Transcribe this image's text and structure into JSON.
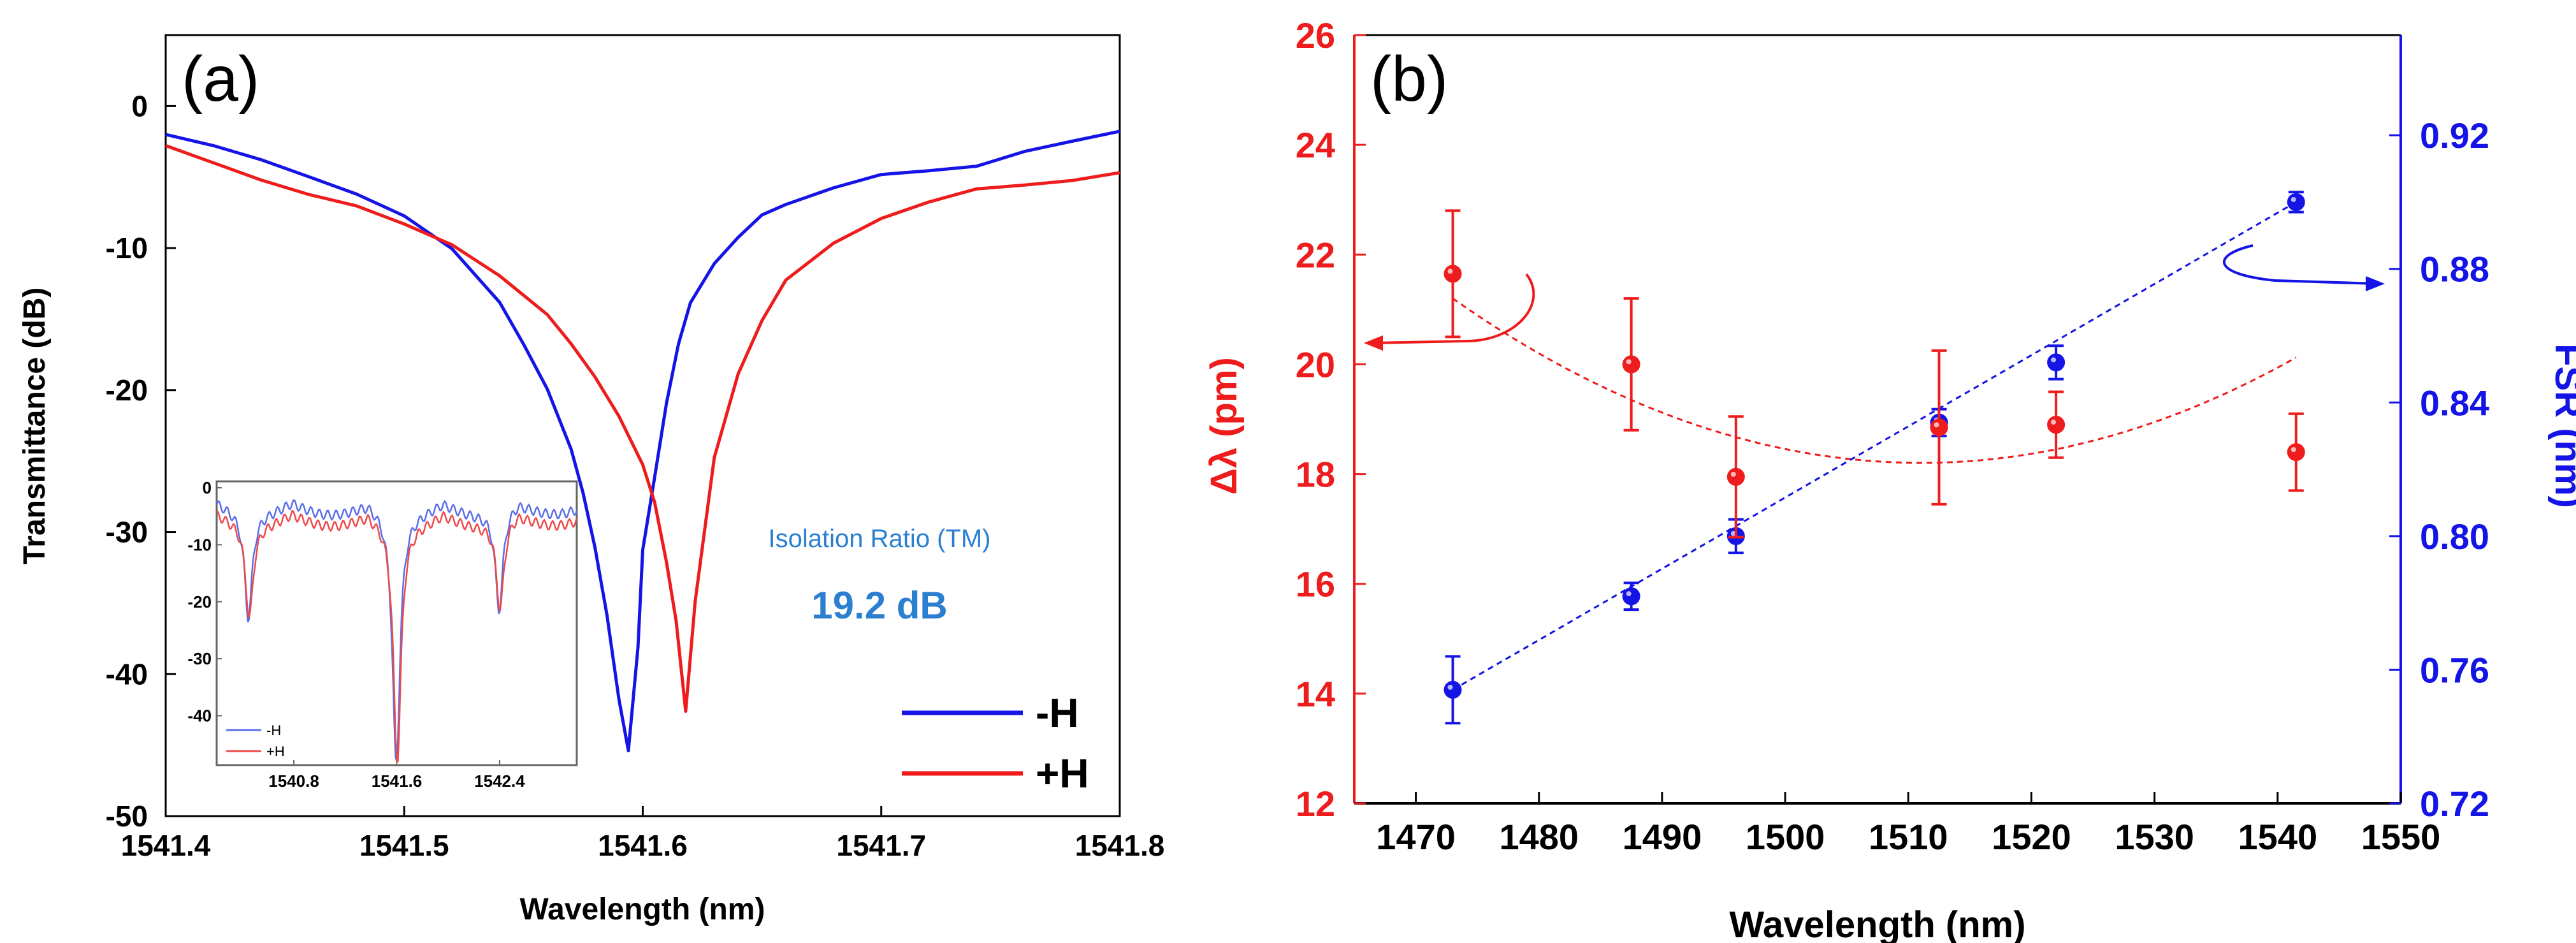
{
  "chart_data": [
    {
      "type": "line",
      "panel_label": "(a)",
      "xlabel": "Wavelength (nm)",
      "ylabel": "Transmittance (dB)",
      "xlim": [
        1541.4,
        1541.8
      ],
      "ylim": [
        -50,
        5
      ],
      "xticks": [
        1541.4,
        1541.5,
        1541.6,
        1541.7,
        1541.8
      ],
      "xtick_labels": [
        "1541.4",
        "1541.5",
        "1541.6",
        "1541.7",
        "1541.8"
      ],
      "yticks": [
        0,
        -10,
        -20,
        -30,
        -40,
        -50
      ],
      "ytick_labels": [
        "0",
        "-10",
        "-20",
        "-30",
        "-40",
        "-50"
      ],
      "annotation_title": "Isolation Ratio (TM)",
      "annotation_value": "19.2 dB",
      "colors": {
        "minus_h": "#1414e6",
        "plus_h": "#ee1c1c",
        "annotation": "#2b7fd0"
      },
      "series": [
        {
          "name": "-H",
          "x": [
            1541.4,
            1541.42,
            1541.44,
            1541.46,
            1541.48,
            1541.5,
            1541.52,
            1541.54,
            1541.55,
            1541.56,
            1541.57,
            1541.575,
            1541.58,
            1541.585,
            1541.59,
            1541.594,
            1541.598,
            1541.6,
            1541.605,
            1541.61,
            1541.615,
            1541.62,
            1541.63,
            1541.64,
            1541.65,
            1541.66,
            1541.68,
            1541.7,
            1541.72,
            1541.74,
            1541.76,
            1541.78,
            1541.8
          ],
          "y": [
            -2,
            -3,
            -4,
            -5,
            -6,
            -7.5,
            -10,
            -14,
            -17,
            -20,
            -24,
            -27,
            -31,
            -36,
            -42,
            -45.5,
            -38,
            -31,
            -26,
            -21,
            -17,
            -14,
            -11,
            -9,
            -7.5,
            -7,
            -6,
            -5,
            -4.5,
            -4,
            -3,
            -2.5,
            -2
          ]
        },
        {
          "name": "+H",
          "x": [
            1541.4,
            1541.42,
            1541.44,
            1541.46,
            1541.48,
            1541.5,
            1541.52,
            1541.54,
            1541.56,
            1541.57,
            1541.58,
            1541.59,
            1541.6,
            1541.605,
            1541.61,
            1541.614,
            1541.618,
            1541.622,
            1541.63,
            1541.64,
            1541.65,
            1541.66,
            1541.68,
            1541.7,
            1541.72,
            1541.74,
            1541.76,
            1541.78,
            1541.8
          ],
          "y": [
            -3,
            -4,
            -5,
            -6,
            -7,
            -8.5,
            -10,
            -12,
            -14.5,
            -16.5,
            -19,
            -22,
            -25.5,
            -28,
            -32,
            -36,
            -42.5,
            -35,
            -25,
            -19,
            -15,
            -12,
            -9.5,
            -8,
            -7,
            -6,
            -5.5,
            -5,
            -4.5
          ]
        }
      ],
      "inset": {
        "xlim": [
          1540.2,
          1543.0
        ],
        "ylim": [
          -48,
          0
        ],
        "xticks": [
          1540.8,
          1541.6,
          1542.4
        ],
        "xtick_labels": [
          "1540.8",
          "1541.6",
          "1542.4"
        ],
        "yticks": [
          0,
          -10,
          -20,
          -30,
          -40
        ],
        "ytick_labels": [
          "0",
          "-10",
          "-20",
          "-30",
          "-40"
        ],
        "legend": [
          "-H",
          "+H"
        ],
        "dips": [
          {
            "center": 1540.45,
            "depth": -21
          },
          {
            "center": 1541.6,
            "depth": -47
          },
          {
            "center": 1542.4,
            "depth": -20
          }
        ]
      }
    },
    {
      "type": "scatter",
      "panel_label": "(b)",
      "xlabel": "Wavelength (nm)",
      "ylabel_left": "Δλ (pm)",
      "ylabel_right": "FSR (nm)",
      "xlim": [
        1465,
        1550
      ],
      "ylim_left": [
        12,
        26
      ],
      "ylim_right": [
        0.72,
        0.95
      ],
      "xticks": [
        1470,
        1480,
        1490,
        1500,
        1510,
        1520,
        1530,
        1540,
        1550
      ],
      "xtick_labels": [
        "1470",
        "1480",
        "1490",
        "1500",
        "1510",
        "1520",
        "1530",
        "1540",
        "1550"
      ],
      "yticks_left": [
        12,
        14,
        16,
        18,
        20,
        22,
        24,
        26
      ],
      "ytick_labels_left": [
        "12",
        "14",
        "16",
        "18",
        "20",
        "22",
        "24",
        "26"
      ],
      "yticks_right": [
        0.72,
        0.76,
        0.8,
        0.84,
        0.88,
        0.92
      ],
      "ytick_labels_right": [
        "0.72",
        "0.76",
        "0.80",
        "0.84",
        "0.88",
        "0.92"
      ],
      "colors": {
        "left": "#ee1c1c",
        "right": "#1414e6"
      },
      "series": [
        {
          "name": "Δλ",
          "axis": "left",
          "x": [
            1473,
            1487.5,
            1496,
            1512.5,
            1522,
            1541.5
          ],
          "y": [
            21.65,
            20.0,
            17.95,
            18.85,
            18.9,
            18.4
          ],
          "err": [
            1.15,
            1.2,
            1.1,
            1.4,
            0.6,
            0.7
          ],
          "fit": [
            21.2,
            -0.1575,
            0.00207,
            1473
          ]
        },
        {
          "name": "FSR",
          "axis": "right",
          "x": [
            1473,
            1487.5,
            1496,
            1512.5,
            1522,
            1541.5
          ],
          "y": [
            0.754,
            0.782,
            0.8,
            0.834,
            0.852,
            0.9
          ],
          "err": [
            0.01,
            0.004,
            0.005,
            0.004,
            0.005,
            0.003
          ],
          "fit": [
            0.754,
            0.9
          ]
        }
      ]
    }
  ]
}
